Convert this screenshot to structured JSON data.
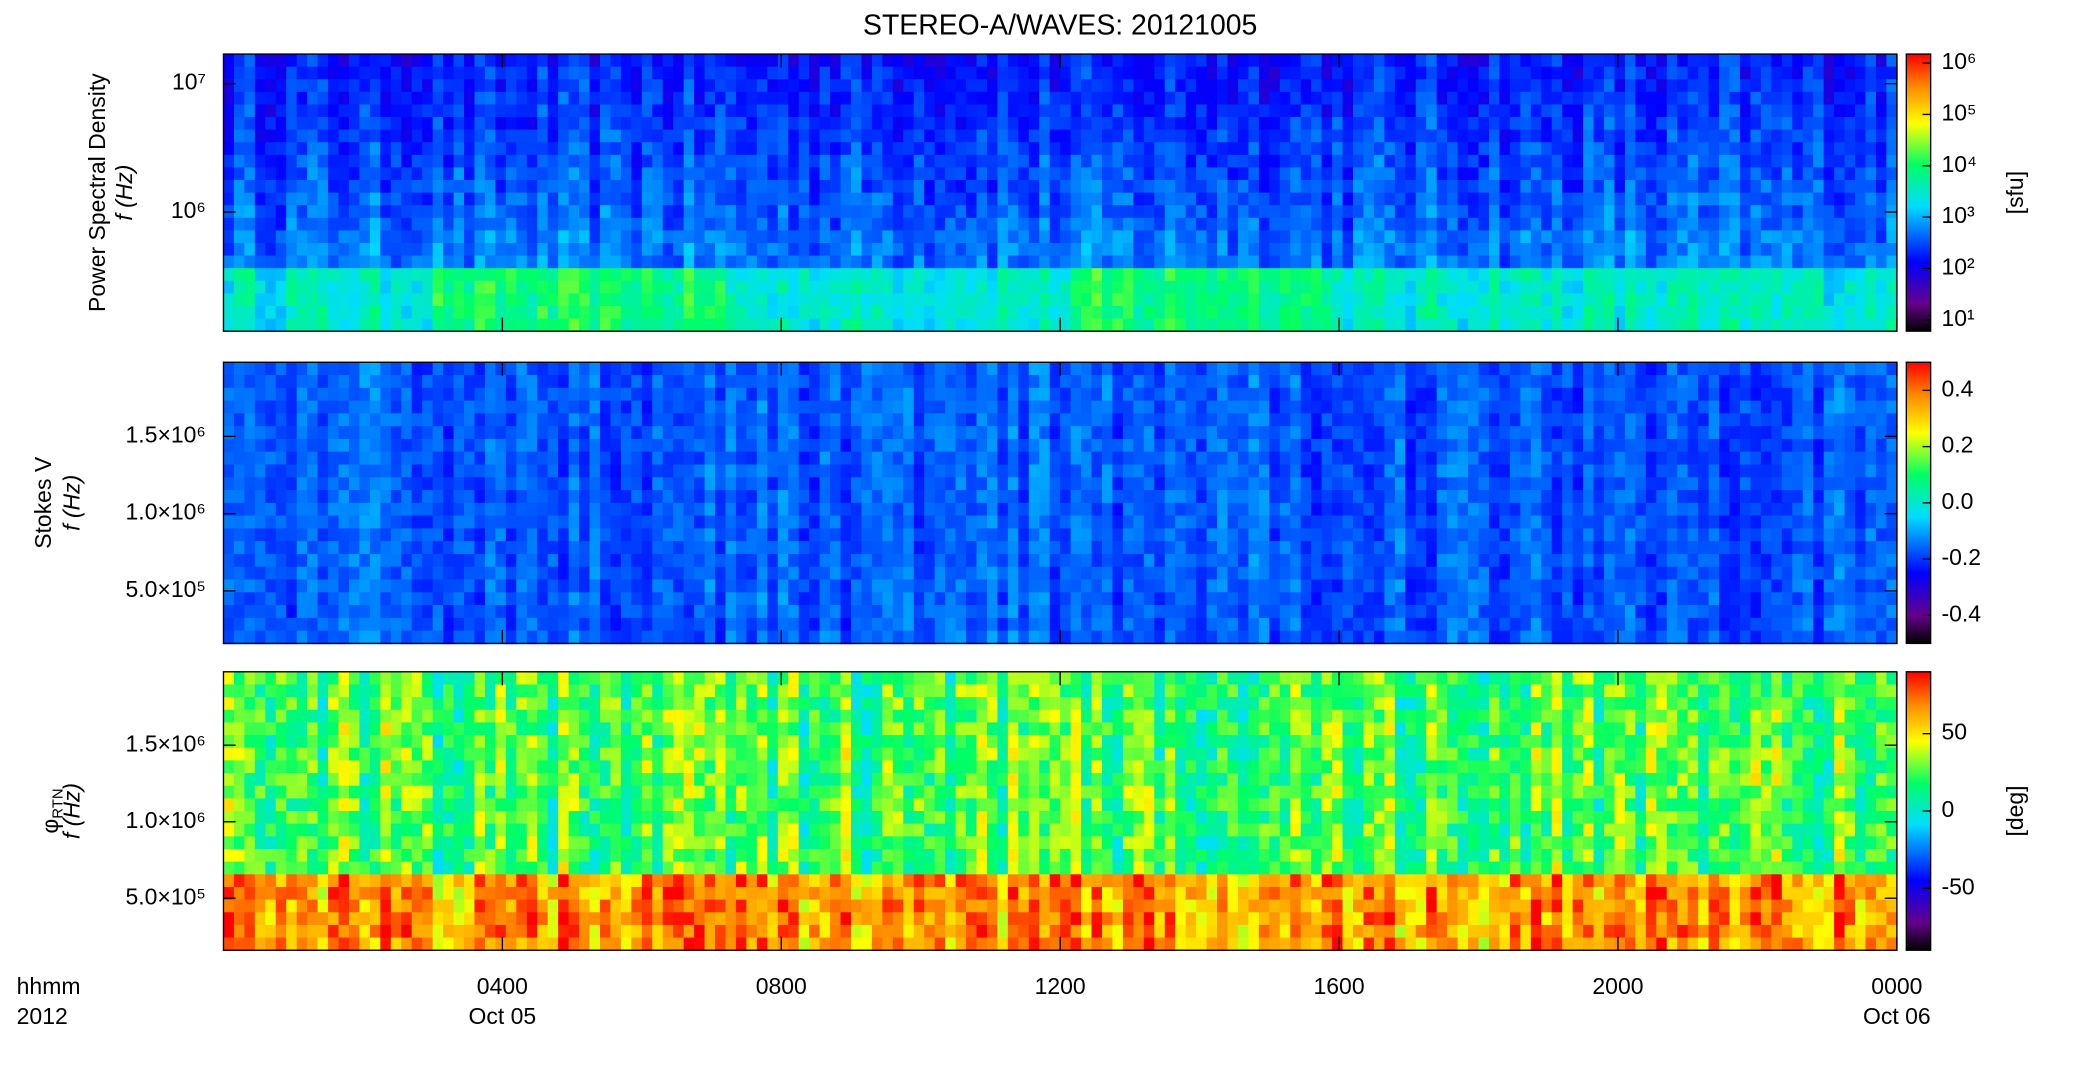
{
  "chart_data": [
    {
      "type": "spectrogram",
      "title": "STEREO-A/WAVES: 20121005",
      "ylabel": "Power Spectral Density",
      "ylabel2": "f (Hz)",
      "ylog": true,
      "ylim": [
        118000,
        17000000
      ],
      "yticks": [
        {
          "value": 1000000,
          "label": "10⁶"
        },
        {
          "value": 10000000,
          "label": "10⁷"
        }
      ],
      "colorbar": {
        "log": true,
        "lim": [
          6,
          1500000
        ],
        "label": "[sfu]",
        "ticks": [
          {
            "value": 10,
            "label": "10¹"
          },
          {
            "value": 100,
            "label": "10²"
          },
          {
            "value": 1000,
            "label": "10³"
          },
          {
            "value": 10000,
            "label": "10⁴"
          },
          {
            "value": 100000,
            "label": "10⁵"
          },
          {
            "value": 1000000,
            "label": "10⁶"
          }
        ]
      }
    },
    {
      "type": "spectrogram",
      "ylabel": "Stokes V",
      "ylabel2": "f (Hz)",
      "ylog": false,
      "ylim": [
        160000,
        1980000
      ],
      "yticks": [
        {
          "value": 500000,
          "label": "5.0×10⁵"
        },
        {
          "value": 1000000,
          "label": "1.0×10⁶"
        },
        {
          "value": 1500000,
          "label": "1.5×10⁶"
        }
      ],
      "colorbar": {
        "log": false,
        "lim": [
          -0.5,
          0.5
        ],
        "ticks": [
          -0.4,
          -0.2,
          {
            "value": 0,
            "label": "0.0"
          },
          0.2,
          0.4
        ]
      }
    },
    {
      "type": "spectrogram",
      "ylabel": "φ",
      "ylabel_subscript": "RTN",
      "ylabel2": "f (Hz)",
      "ylog": false,
      "ylim": [
        160000,
        1980000
      ],
      "yticks": [
        {
          "value": 500000,
          "label": "5.0×10⁵"
        },
        {
          "value": 1000000,
          "label": "1.0×10⁶"
        },
        {
          "value": 1500000,
          "label": "1.5×10⁶"
        }
      ],
      "colorbar": {
        "log": false,
        "lim": [
          -90,
          90
        ],
        "label": "[deg]",
        "ticks": [
          -50,
          0,
          50
        ]
      },
      "xlim": [
        0,
        24
      ],
      "xticks": [
        {
          "value": 4,
          "label": "0400"
        },
        {
          "value": 8,
          "label": "0800"
        },
        {
          "value": 12,
          "label": "1200"
        },
        {
          "value": 16,
          "label": "1600"
        },
        {
          "value": 20,
          "label": "2000"
        },
        {
          "value": 24,
          "label": "0000"
        }
      ],
      "xticks2": [
        {
          "value": 4,
          "label": "Oct 05"
        },
        {
          "value": 24,
          "label": "Oct 06"
        }
      ],
      "xunit_label": "hhmm",
      "year_label": "2012"
    }
  ]
}
